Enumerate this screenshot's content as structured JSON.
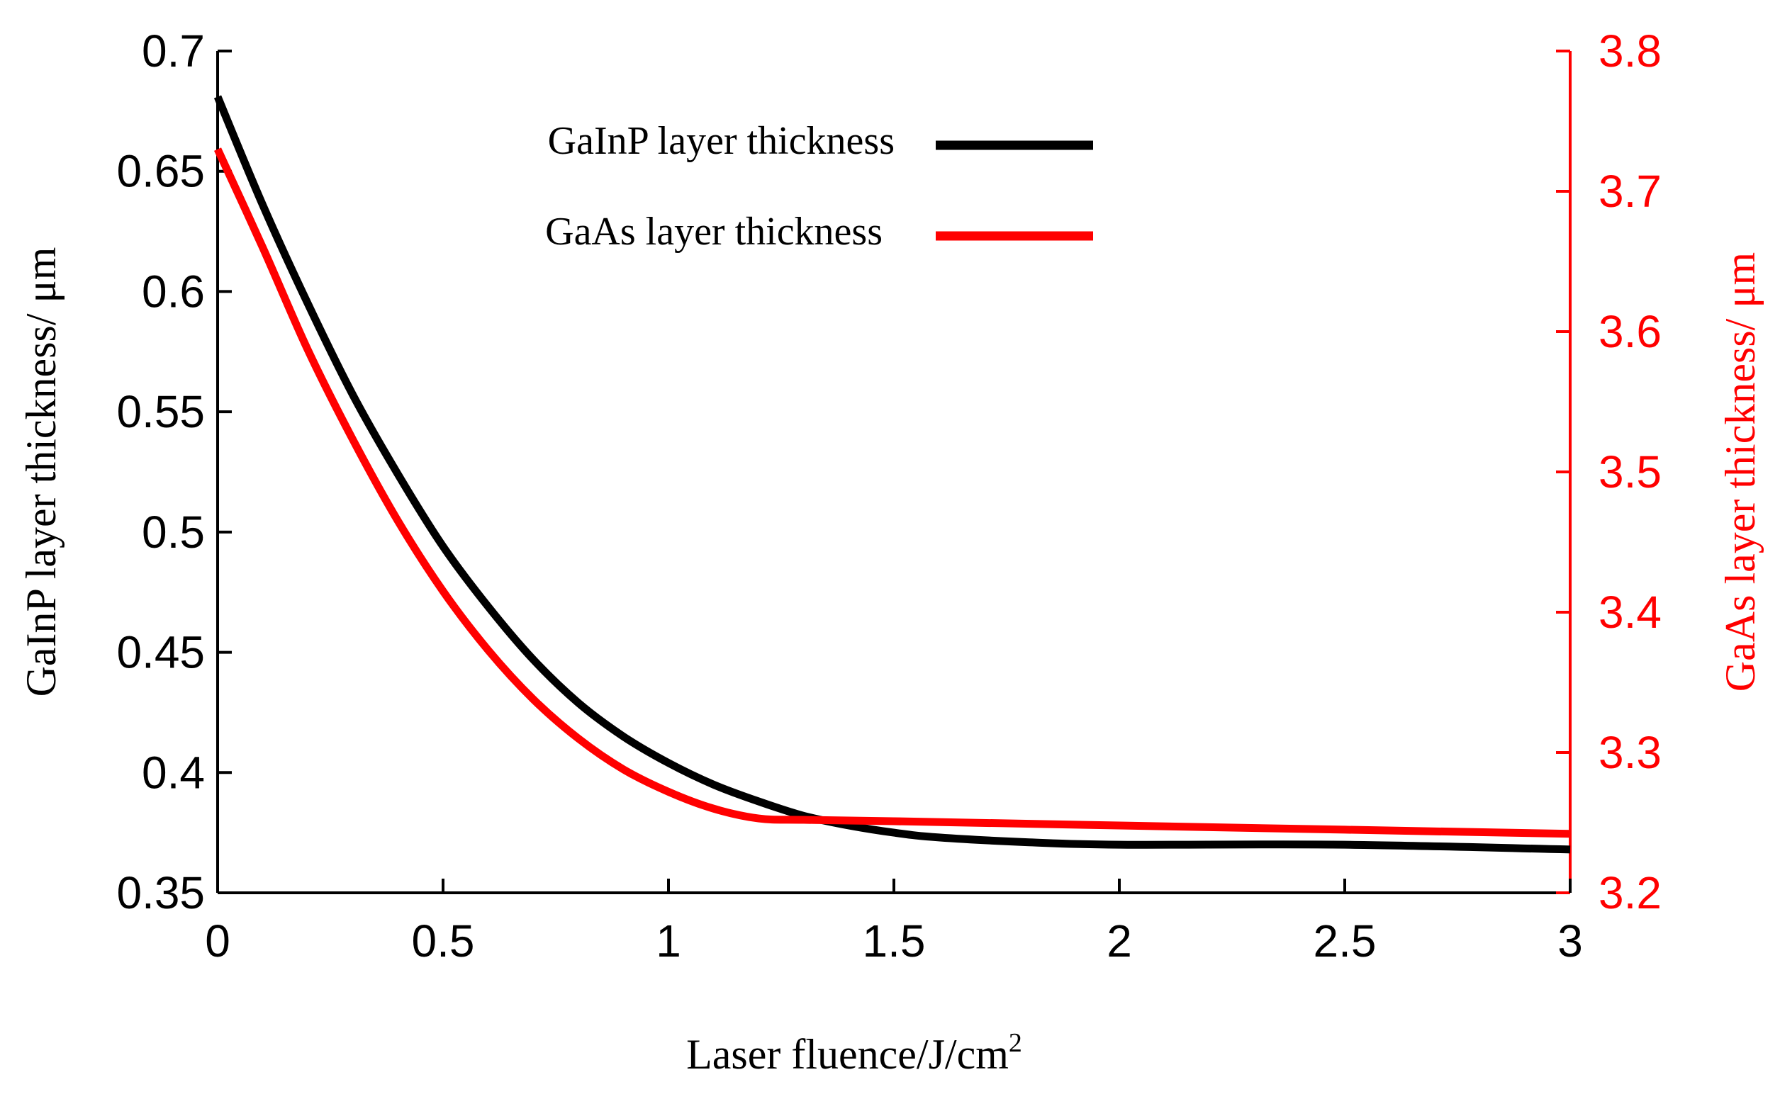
{
  "chart_data": {
    "type": "line",
    "title": "",
    "xlabel": "Laser fluence/J/cm",
    "xlabel_superscript": "2",
    "ylabel_left": "GaInP layer thickness/ μm",
    "ylabel_right": "GaAs layer thickness/ μm",
    "xlim": [
      0,
      3
    ],
    "ylim_left": [
      0.35,
      0.7
    ],
    "ylim_right": [
      3.2,
      3.8
    ],
    "x_ticks": [
      "0",
      "0.5",
      "1",
      "1.5",
      "2",
      "2.5",
      "3"
    ],
    "y_left_ticks": [
      "0.35",
      "0.4",
      "0.45",
      "0.5",
      "0.55",
      "0.6",
      "0.65",
      "0.7"
    ],
    "y_right_ticks": [
      "3.2",
      "3.3",
      "3.4",
      "3.5",
      "3.6",
      "3.7",
      "3.8"
    ],
    "grid": false,
    "legend_position": "top-center",
    "series": [
      {
        "name": "GaInP layer thickness",
        "axis": "left",
        "color": "#000000",
        "x": [
          0,
          0.1,
          0.2,
          0.3,
          0.4,
          0.5,
          0.6,
          0.7,
          0.8,
          0.9,
          1.0,
          1.1,
          1.2,
          1.3,
          1.4,
          1.5,
          1.6,
          1.8,
          2.0,
          2.5,
          3.0
        ],
        "values": [
          0.681,
          0.636,
          0.595,
          0.557,
          0.524,
          0.494,
          0.469,
          0.447,
          0.429,
          0.415,
          0.404,
          0.395,
          0.388,
          0.382,
          0.378,
          0.375,
          0.373,
          0.371,
          0.37,
          0.37,
          0.368
        ]
      },
      {
        "name": "GaAs layer thickness",
        "axis": "right",
        "color": "#ff0000",
        "x": [
          0,
          0.1,
          0.2,
          0.3,
          0.4,
          0.5,
          0.6,
          0.7,
          0.8,
          0.9,
          1.0,
          1.1,
          1.2,
          1.3,
          1.5,
          2.0,
          2.5,
          3.0
        ],
        "values": [
          3.73,
          3.66,
          3.587,
          3.523,
          3.465,
          3.415,
          3.373,
          3.338,
          3.31,
          3.288,
          3.272,
          3.26,
          3.253,
          3.252,
          3.251,
          3.248,
          3.245,
          3.242
        ]
      }
    ]
  }
}
